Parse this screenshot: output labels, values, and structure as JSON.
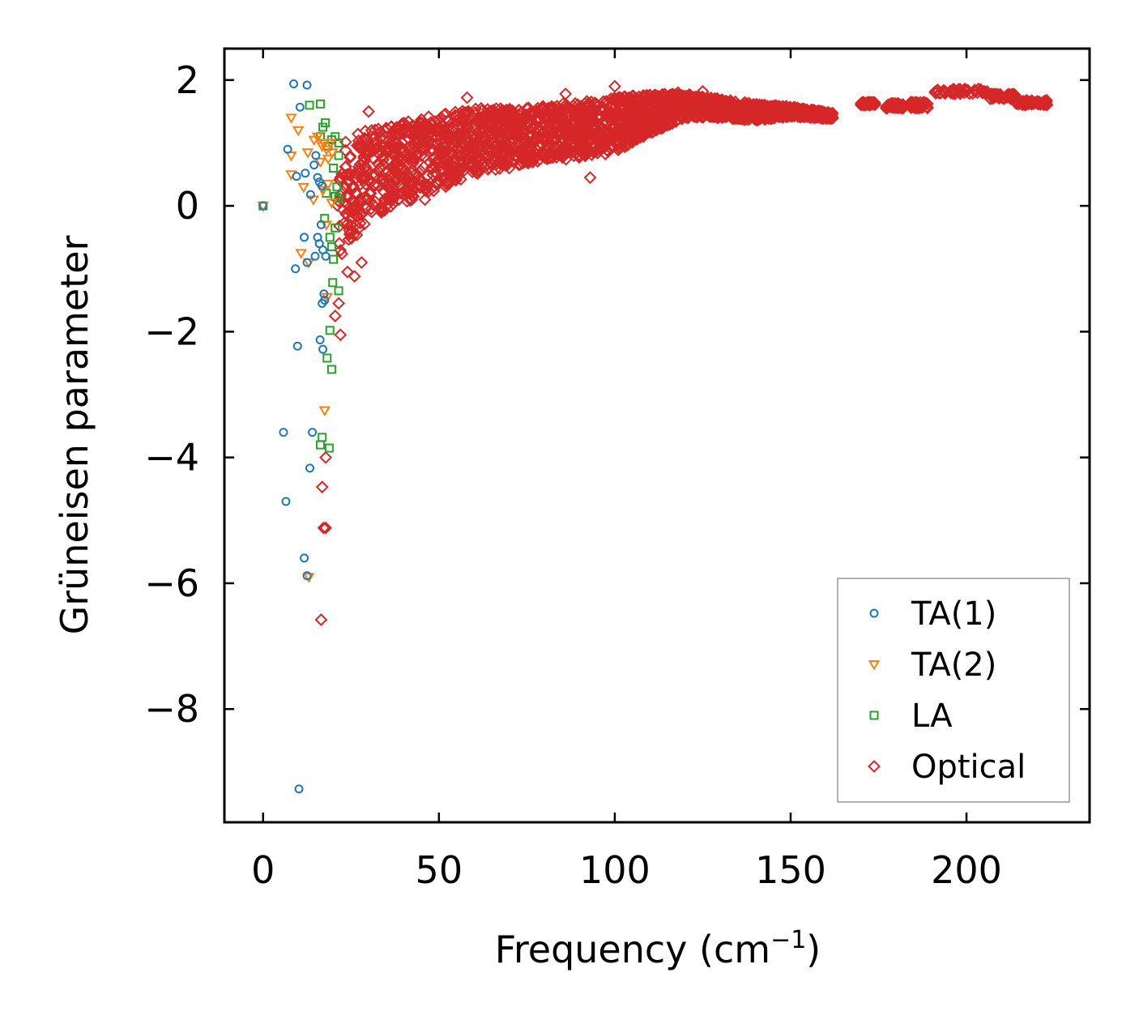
{
  "chart_data": {
    "type": "scatter",
    "title": "",
    "xlabel": "Frequency (cm",
    "xlabel_sup": "−1",
    "xlabel_close": ")",
    "ylabel": "Grüneisen parameter",
    "xlim": [
      -11,
      235
    ],
    "ylim": [
      -9.8,
      2.5
    ],
    "xticks": [
      0,
      50,
      100,
      150,
      200
    ],
    "xtick_labels": [
      "0",
      "50",
      "100",
      "150",
      "200"
    ],
    "yticks": [
      2,
      0,
      -2,
      -4,
      -6,
      -8
    ],
    "ytick_labels": [
      "2",
      "0",
      "−2",
      "−4",
      "−6",
      "−8"
    ],
    "grid": false,
    "legend_position": "bottom-right",
    "series": [
      {
        "name": "TA(1)",
        "marker": "circle",
        "color": "#1f77b4",
        "points": [
          [
            0,
            0
          ],
          [
            8.7,
            1.94
          ],
          [
            12.5,
            1.92
          ],
          [
            10.5,
            1.57
          ],
          [
            7,
            0.9
          ],
          [
            9.5,
            0.47
          ],
          [
            12,
            0.52
          ],
          [
            13.5,
            0.18
          ],
          [
            14.5,
            0.65
          ],
          [
            15,
            0.8
          ],
          [
            15.5,
            0.45
          ],
          [
            16,
            0.38
          ],
          [
            16.7,
            0.32
          ],
          [
            11.7,
            -0.5
          ],
          [
            9.2,
            -1.0
          ],
          [
            12.5,
            -0.9
          ],
          [
            14.8,
            -0.8
          ],
          [
            15.5,
            -0.5
          ],
          [
            16,
            -0.6
          ],
          [
            16.5,
            -0.3
          ],
          [
            17,
            -0.7
          ],
          [
            17.8,
            -0.8
          ],
          [
            17.3,
            -1.4
          ],
          [
            17.5,
            -1.5
          ],
          [
            16.8,
            -1.55
          ],
          [
            9.8,
            -2.23
          ],
          [
            16.2,
            -2.13
          ],
          [
            17,
            -2.28
          ],
          [
            5.8,
            -3.6
          ],
          [
            14,
            -3.6
          ],
          [
            13.3,
            -4.17
          ],
          [
            6.5,
            -4.7
          ],
          [
            11.7,
            -5.6
          ],
          [
            12.5,
            -5.88
          ],
          [
            10.2,
            -9.27
          ]
        ]
      },
      {
        "name": "TA(2)",
        "marker": "triangle",
        "color": "#ff7f0e",
        "points": [
          [
            0,
            0
          ],
          [
            8,
            1.4
          ],
          [
            10,
            1.2
          ],
          [
            12.7,
            0.85
          ],
          [
            14.5,
            1.05
          ],
          [
            15.5,
            1.1
          ],
          [
            16.3,
            0.7
          ],
          [
            16.8,
            0.95
          ],
          [
            17.3,
            1.0
          ],
          [
            18,
            0.9
          ],
          [
            18.5,
            0.75
          ],
          [
            19.2,
            1.0
          ],
          [
            19.7,
            0.85
          ],
          [
            8,
            0.8
          ],
          [
            8,
            0.5
          ],
          [
            11.5,
            0.3
          ],
          [
            14.3,
            0.1
          ],
          [
            17,
            0.25
          ],
          [
            18.5,
            0.35
          ],
          [
            19.5,
            0.05
          ],
          [
            18,
            -0.3
          ],
          [
            10.8,
            -0.75
          ],
          [
            13,
            -0.9
          ],
          [
            18.2,
            -1.45
          ],
          [
            17.5,
            -3.25
          ],
          [
            13,
            -5.9
          ]
        ]
      },
      {
        "name": "LA",
        "marker": "square",
        "color": "#2ca02c",
        "points": [
          [
            0,
            0
          ],
          [
            13.2,
            1.6
          ],
          [
            16.3,
            1.62
          ],
          [
            16.3,
            1.1
          ],
          [
            17,
            1.25
          ],
          [
            17.7,
            1.32
          ],
          [
            18.5,
            0.95
          ],
          [
            19.5,
            1.05
          ],
          [
            20.5,
            1.1
          ],
          [
            21.5,
            1.0
          ],
          [
            21.5,
            0.8
          ],
          [
            20,
            0.6
          ],
          [
            21,
            0.3
          ],
          [
            18,
            0.2
          ],
          [
            20.5,
            0.15
          ],
          [
            21.5,
            0.12
          ],
          [
            17.5,
            -0.2
          ],
          [
            19,
            -0.5
          ],
          [
            20.5,
            -0.35
          ],
          [
            19.5,
            -0.65
          ],
          [
            20,
            -0.85
          ],
          [
            19.8,
            -1.22
          ],
          [
            21.5,
            -1.35
          ],
          [
            19,
            -1.98
          ],
          [
            18.2,
            -2.42
          ],
          [
            19.5,
            -2.6
          ],
          [
            16.8,
            -3.68
          ],
          [
            18.8,
            -3.85
          ],
          [
            16.3,
            -3.8
          ]
        ]
      },
      {
        "name": "Optical",
        "marker": "diamond",
        "color": "#d62728",
        "points": [
          [
            17.8,
            -4.0
          ],
          [
            16.8,
            -4.47
          ],
          [
            17.2,
            -5.12
          ],
          [
            17.8,
            -5.12
          ],
          [
            16.5,
            -6.58
          ],
          [
            21.5,
            -1.55
          ],
          [
            20.5,
            -1.75
          ],
          [
            22,
            -2.05
          ],
          [
            24,
            -1.05
          ],
          [
            26,
            -1.12
          ],
          [
            28,
            -0.9
          ],
          [
            30,
            1.5
          ],
          [
            38,
            1.25
          ],
          [
            42,
            0.3
          ],
          [
            46,
            0.1
          ],
          [
            52,
            0.35
          ],
          [
            58,
            1.72
          ],
          [
            62,
            1.55
          ],
          [
            70,
            0.6
          ],
          [
            75,
            1.55
          ],
          [
            86,
            1.78
          ],
          [
            93,
            0.45
          ],
          [
            100,
            1.9
          ],
          [
            104,
            1.72
          ],
          [
            110,
            1.75
          ],
          [
            118,
            1.8
          ],
          [
            125,
            1.82
          ]
        ],
        "band": {
          "description": "dense band of optical-mode points",
          "lower": [
            [
              21,
              -0.9
            ],
            [
              25,
              -0.6
            ],
            [
              30,
              -0.2
            ],
            [
              40,
              0.05
            ],
            [
              50,
              0.25
            ],
            [
              60,
              0.5
            ],
            [
              70,
              0.62
            ],
            [
              80,
              0.72
            ],
            [
              90,
              0.75
            ],
            [
              100,
              0.85
            ],
            [
              110,
              1.15
            ],
            [
              120,
              1.4
            ],
            [
              130,
              1.4
            ],
            [
              140,
              1.35
            ],
            [
              150,
              1.42
            ],
            [
              162,
              1.38
            ]
          ],
          "upper": [
            [
              21,
              1.05
            ],
            [
              25,
              1.15
            ],
            [
              30,
              1.2
            ],
            [
              40,
              1.35
            ],
            [
              50,
              1.45
            ],
            [
              60,
              1.55
            ],
            [
              70,
              1.55
            ],
            [
              80,
              1.6
            ],
            [
              90,
              1.65
            ],
            [
              100,
              1.72
            ],
            [
              110,
              1.78
            ],
            [
              120,
              1.78
            ],
            [
              130,
              1.7
            ],
            [
              140,
              1.62
            ],
            [
              150,
              1.58
            ],
            [
              162,
              1.48
            ]
          ]
        },
        "clusters": [
          {
            "x": [
              170,
              174
            ],
            "y": [
              1.6,
              1.65
            ]
          },
          {
            "x": [
              177,
              182
            ],
            "y": [
              1.55,
              1.63
            ]
          },
          {
            "x": [
              184,
              189
            ],
            "y": [
              1.55,
              1.65
            ]
          },
          {
            "x": [
              191,
              206
            ],
            "y": [
              1.78,
              1.86
            ]
          },
          {
            "x": [
              206,
              214
            ],
            "y": [
              1.7,
              1.78
            ]
          },
          {
            "x": [
              214,
              223
            ],
            "y": [
              1.6,
              1.68
            ]
          }
        ]
      }
    ]
  }
}
